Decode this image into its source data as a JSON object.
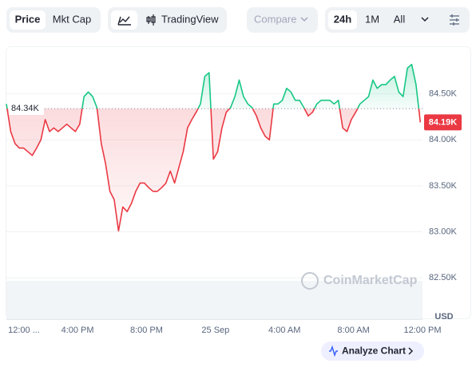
{
  "toolbar": {
    "price": "Price",
    "mkt_cap": "Mkt Cap",
    "tradingview": "TradingView",
    "compare": "Compare",
    "range_24h": "24h",
    "range_1m": "1M",
    "range_all": "All"
  },
  "chart_data": {
    "type": "line",
    "values": [
      84390,
      84090,
      83960,
      83910,
      83910,
      83870,
      83830,
      83910,
      84000,
      84220,
      84090,
      84130,
      84090,
      84130,
      84170,
      84130,
      84090,
      84170,
      84470,
      84520,
      84470,
      84350,
      83960,
      83740,
      83440,
      83350,
      83010,
      83270,
      83220,
      83310,
      83440,
      83530,
      83530,
      83480,
      83440,
      83440,
      83480,
      83530,
      83660,
      83530,
      83700,
      83870,
      84130,
      84220,
      84300,
      84390,
      84690,
      84730,
      83790,
      83870,
      84130,
      84300,
      84350,
      84470,
      84650,
      84470,
      84390,
      84350,
      84260,
      84130,
      84040,
      84000,
      84390,
      84390,
      84430,
      84560,
      84520,
      84430,
      84430,
      84350,
      84260,
      84300,
      84390,
      84430,
      84430,
      84430,
      84390,
      84430,
      84130,
      84090,
      84220,
      84300,
      84390,
      84430,
      84470,
      84650,
      84560,
      84600,
      84600,
      84650,
      84690,
      84520,
      84470,
      84780,
      84820,
      84600,
      84190
    ],
    "up_color": "#16c784",
    "down_color": "#ea3943",
    "xlim": [
      0,
      96.5
    ],
    "xticks": [
      {
        "value": 0.5,
        "label": "12:00 ..."
      },
      {
        "value": 16.5,
        "label": "4:00 PM"
      },
      {
        "value": 32.5,
        "label": "8:00 PM"
      },
      {
        "value": 48.5,
        "label": "25 Sep"
      },
      {
        "value": 64.5,
        "label": "4:00 AM"
      },
      {
        "value": 80.5,
        "label": "8:00 AM"
      },
      {
        "value": 96.5,
        "label": "12:00 PM"
      }
    ],
    "ylim": [
      82050,
      85000
    ],
    "yticks": [
      {
        "value": 82500,
        "label": "82.50K"
      },
      {
        "value": 83000,
        "label": "83.00K"
      },
      {
        "value": 83500,
        "label": "83.50K"
      },
      {
        "value": 84000,
        "label": "84.00K"
      },
      {
        "value": 84500,
        "label": "84.50K"
      }
    ],
    "grid": true,
    "baseline": {
      "value": 84340,
      "label": "84.34K"
    },
    "last_price": {
      "value": 84190,
      "label": "84.19K"
    },
    "y_unit": "USD",
    "watermark": "CoinMarketCap",
    "analyze": "Analyze Chart"
  }
}
